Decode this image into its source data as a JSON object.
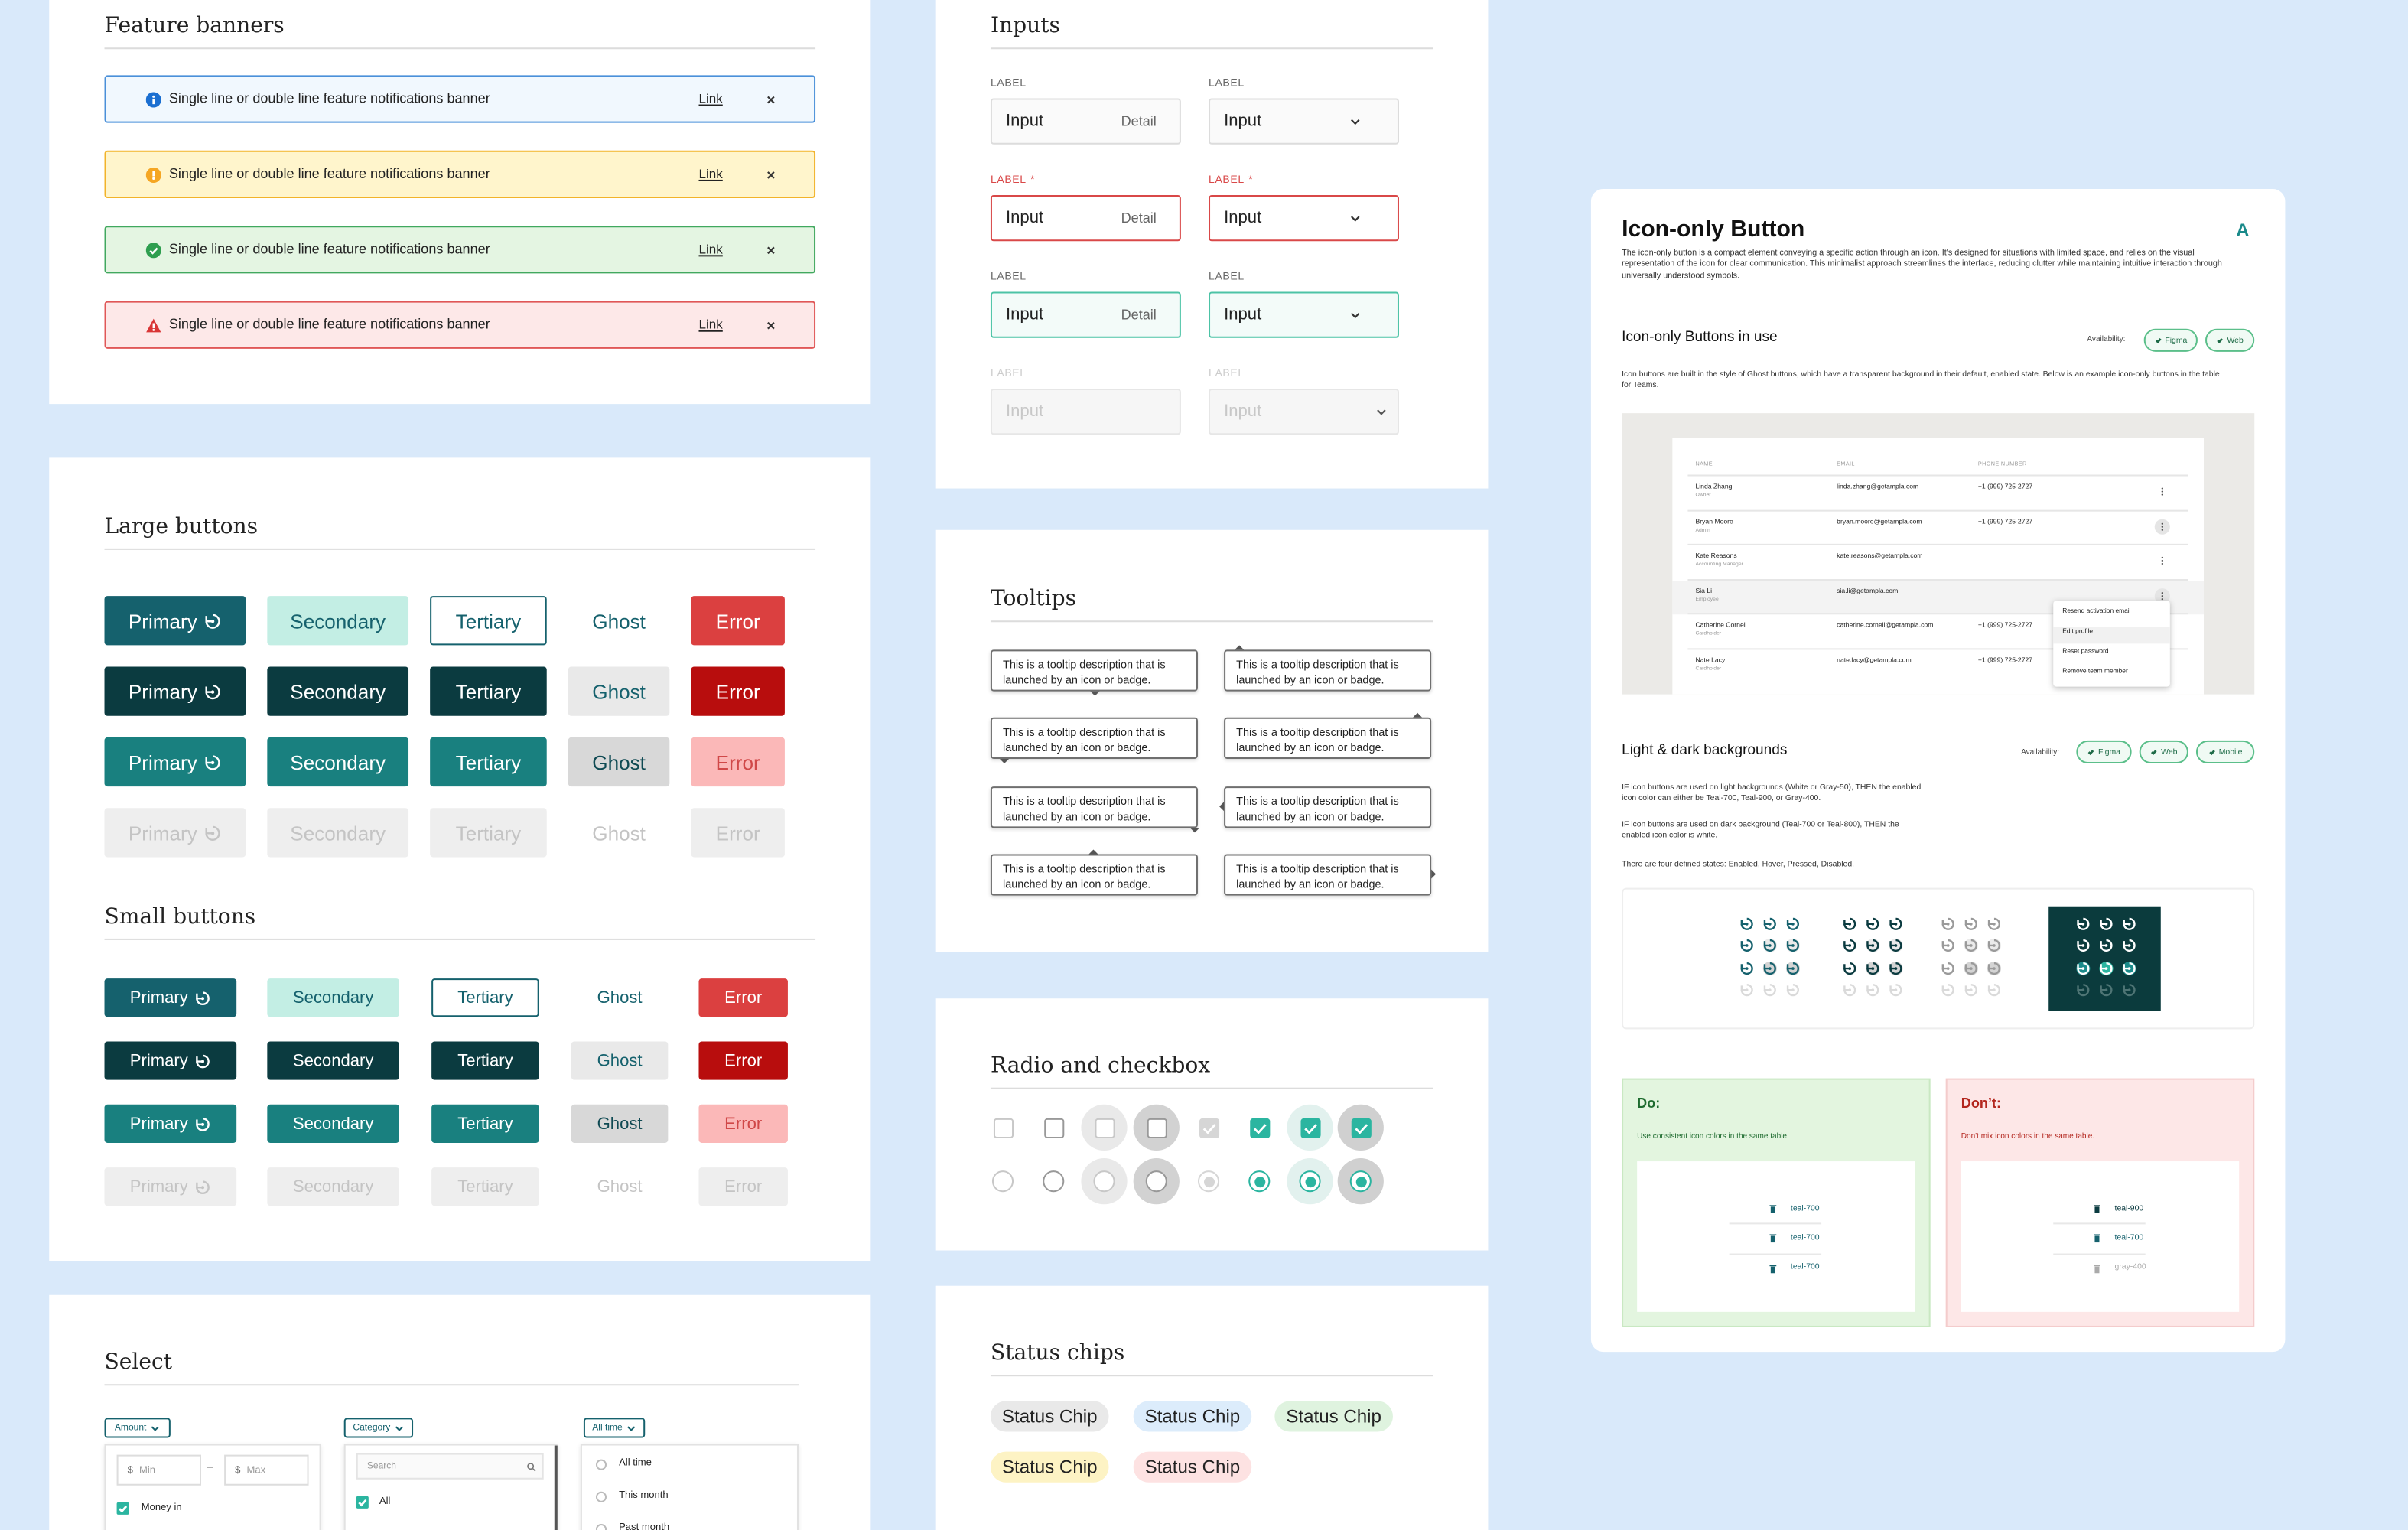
{
  "feature_banners": {
    "title": "Feature banners",
    "items": [
      {
        "text": "Single line or double line feature notifications banner",
        "link": "Link"
      },
      {
        "text": "Single line or double line feature notifications banner",
        "link": "Link"
      },
      {
        "text": "Single line or double line feature notifications banner",
        "link": "Link"
      },
      {
        "text": "Single line or double line feature notifications banner",
        "link": "Link"
      }
    ]
  },
  "large_buttons": {
    "title": "Large buttons",
    "rows": [
      [
        "Primary",
        "Secondary",
        "Tertiary",
        "Ghost",
        "Error"
      ],
      [
        "Primary",
        "Secondary",
        "Tertiary",
        "Ghost",
        "Error"
      ],
      [
        "Primary",
        "Secondary",
        "Tertiary",
        "Ghost",
        "Error"
      ],
      [
        "Primary",
        "Secondary",
        "Tertiary",
        "Ghost",
        "Error"
      ]
    ]
  },
  "small_buttons": {
    "title": "Small buttons",
    "rows": [
      [
        "Primary",
        "Secondary",
        "Tertiary",
        "Ghost",
        "Error"
      ],
      [
        "Primary",
        "Secondary",
        "Tertiary",
        "Ghost",
        "Error"
      ],
      [
        "Primary",
        "Secondary",
        "Tertiary",
        "Ghost",
        "Error"
      ],
      [
        "Primary",
        "Secondary",
        "Tertiary",
        "Ghost",
        "Error"
      ]
    ]
  },
  "select": {
    "title": "Select",
    "amount": {
      "label": "Amount",
      "min_prefix": "$",
      "min": "Min",
      "dash": "–",
      "max_prefix": "$",
      "max": "Max",
      "option": "Money in"
    },
    "category": {
      "label": "Category",
      "search": "Search",
      "option": "All"
    },
    "time": {
      "label": "All time",
      "options": [
        "All time",
        "This month",
        "Past month"
      ]
    }
  },
  "inputs": {
    "title": "Inputs",
    "fields": [
      {
        "label": "LABEL",
        "value": "Input",
        "detail": "Detail"
      },
      {
        "label": "LABEL",
        "value": "Input"
      },
      {
        "label": "LABEL",
        "marker": "*",
        "value": "Input",
        "detail": "Detail"
      },
      {
        "label": "LABEL",
        "marker": "*",
        "value": "Input"
      },
      {
        "label": "LABEL",
        "value": "Input",
        "detail": "Detail"
      },
      {
        "label": "LABEL",
        "value": "Input"
      },
      {
        "label": "LABEL",
        "value": "Input"
      },
      {
        "label": "LABEL",
        "value": "Input"
      }
    ]
  },
  "tooltips": {
    "title": "Tooltips",
    "items": [
      "This is a tooltip description that is launched by an icon or badge.",
      "This is a tooltip description that is launched by an icon or badge.",
      "This is a tooltip description that is launched by an icon or badge.",
      "This is a tooltip description that is launched by an icon or badge.",
      "This is a tooltip description that is launched by an icon or badge.",
      "This is a tooltip description that is launched by an icon or badge.",
      "This is a tooltip description that is launched by an icon or badge.",
      "This is a tooltip description that is launched by an icon or badge."
    ]
  },
  "radio_checkbox": {
    "title": "Radio and checkbox"
  },
  "status_chips": {
    "title": "Status chips",
    "chips": [
      "Status Chip",
      "Status Chip",
      "Status Chip",
      "Status Chip",
      "Status Chip"
    ]
  },
  "doc": {
    "title": "Icon-only Button",
    "logo": "A",
    "description": "The icon-only button is a compact element conveying a specific action through an icon. It's designed for situations with limited space, and relies on the visual representation of the icon for clear communication. This minimalist approach streamlines the interface, reducing clutter while maintaining intuitive interaction through universally understood symbols.",
    "in_use": {
      "title": "Icon-only Buttons in use",
      "availability": "Availability:",
      "tags": [
        "Figma",
        "Web"
      ],
      "text": "Icon buttons are built in the style of Ghost buttons, which have a transparent background in their default, enabled state. Below is an example icon-only buttons in the table for Teams."
    },
    "table": {
      "headers": [
        "NAME",
        "EMAIL",
        "PHONE NUMBER"
      ],
      "rows": [
        {
          "name": "Linda Zhang",
          "role": "Owner",
          "email": "linda.zhang@getampla.com",
          "phone": "+1 (999) 725-2727"
        },
        {
          "name": "Bryan Moore",
          "role": "Admin",
          "email": "bryan.moore@getampla.com",
          "phone": "+1 (999) 725-2727"
        },
        {
          "name": "Kate Reasons",
          "role": "Accounting Manager",
          "email": "kate.reasons@getampla.com"
        },
        {
          "name": "Sia Li",
          "role": "Employee",
          "email": "sia.li@getampla.com"
        },
        {
          "name": "Catherine Cornell",
          "role": "Cardholder",
          "email": "catherine.cornell@getampla.com",
          "phone": "+1 (999) 725-2727"
        },
        {
          "name": "Nate Lacy",
          "role": "Cardholder",
          "email": "nate.lacy@getampla.com",
          "phone": "+1 (999) 725-2727"
        }
      ],
      "menu": [
        "Resend activation email",
        "Edit profile",
        "Reset password",
        "Remove team member"
      ]
    },
    "backgrounds": {
      "title": "Light & dark backgrounds",
      "availability": "Availability:",
      "tags": [
        "Figma",
        "Web",
        "Mobile"
      ],
      "paragraphs": [
        "IF icon buttons are used on light backgrounds (White or Gray-50), THEN the enabled icon color can either be Teal-700, Teal-900, or Gray-400.",
        "IF icon buttons are used on dark background (Teal-700 or Teal-800), THEN the enabled icon color is white.",
        "There are four defined states: Enabled, Hover, Pressed, Disabled."
      ]
    },
    "do": {
      "title": "Do:",
      "text": "Use consistent icon colors in the same table.",
      "items": [
        "teal-700",
        "teal-700",
        "teal-700"
      ]
    },
    "dont": {
      "title": "Don’t:",
      "text": "Don't mix icon colors in the same table.",
      "items": [
        "teal-900",
        "teal-700",
        "gray-400"
      ]
    }
  }
}
